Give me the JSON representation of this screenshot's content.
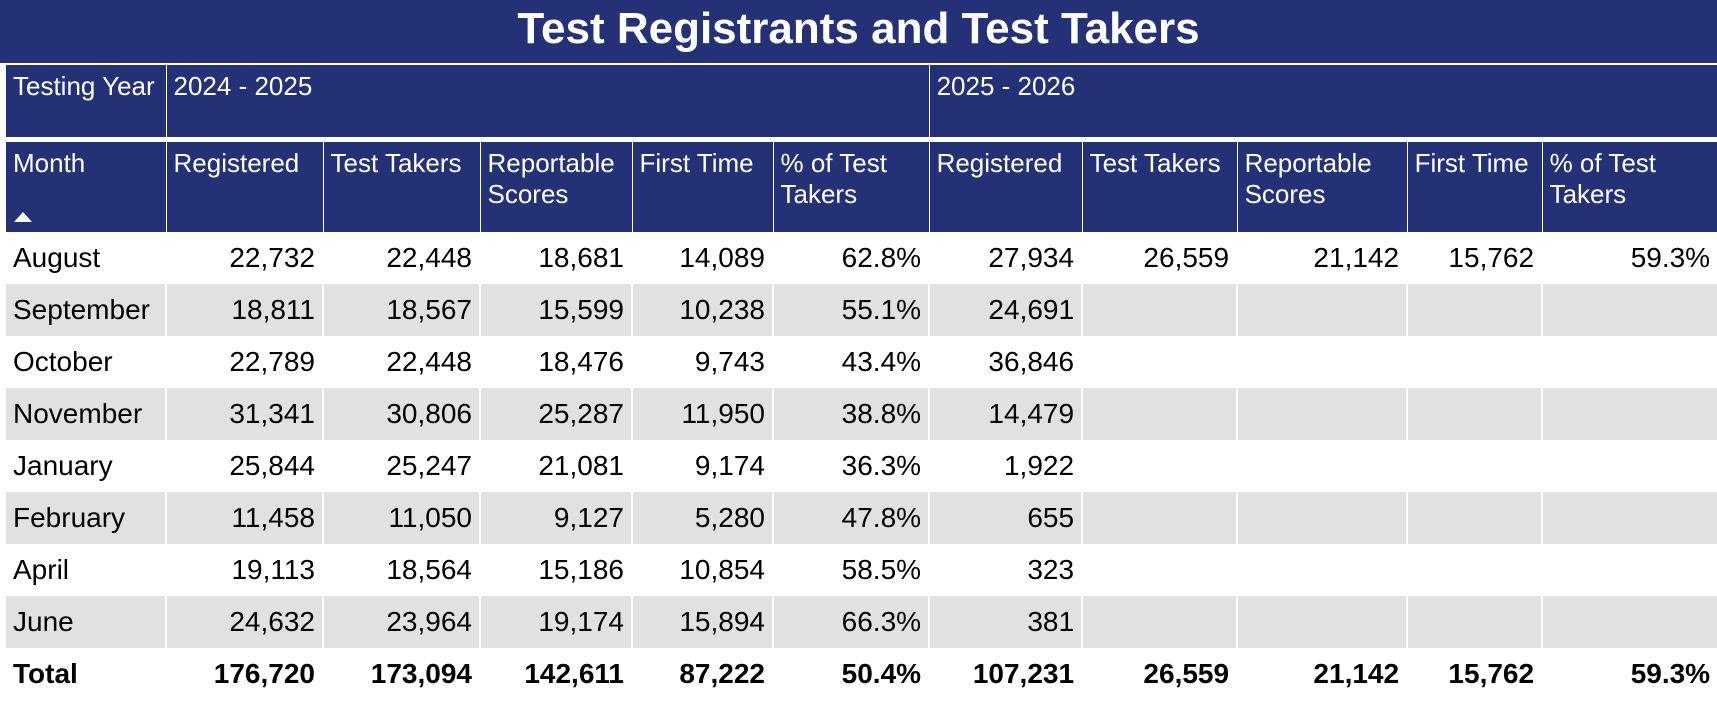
{
  "title": "Test Registrants and Test Takers",
  "header": {
    "testing_year_label": "Testing Year",
    "year1": "2024 - 2025",
    "year2": "2025 - 2026",
    "columns": [
      "Month",
      "Registered",
      "Test Takers",
      "Reportable Scores",
      "First Time",
      "% of Test Takers",
      "Registered",
      "Test Takers",
      "Reportable Scores",
      "First Time",
      "% of Test Takers"
    ]
  },
  "rows": [
    {
      "month": "August",
      "cells": [
        "22,732",
        "22,448",
        "18,681",
        "14,089",
        "62.8%",
        "27,934",
        "26,559",
        "21,142",
        "15,762",
        "59.3%"
      ]
    },
    {
      "month": "September",
      "cells": [
        "18,811",
        "18,567",
        "15,599",
        "10,238",
        "55.1%",
        "24,691",
        "",
        "",
        "",
        ""
      ]
    },
    {
      "month": "October",
      "cells": [
        "22,789",
        "22,448",
        "18,476",
        "9,743",
        "43.4%",
        "36,846",
        "",
        "",
        "",
        ""
      ]
    },
    {
      "month": "November",
      "cells": [
        "31,341",
        "30,806",
        "25,287",
        "11,950",
        "38.8%",
        "14,479",
        "",
        "",
        "",
        ""
      ]
    },
    {
      "month": "January",
      "cells": [
        "25,844",
        "25,247",
        "21,081",
        "9,174",
        "36.3%",
        "1,922",
        "",
        "",
        "",
        ""
      ]
    },
    {
      "month": "February",
      "cells": [
        "11,458",
        "11,050",
        "9,127",
        "5,280",
        "47.8%",
        "655",
        "",
        "",
        "",
        ""
      ]
    },
    {
      "month": "April",
      "cells": [
        "19,113",
        "18,564",
        "15,186",
        "10,854",
        "58.5%",
        "323",
        "",
        "",
        "",
        ""
      ]
    },
    {
      "month": "June",
      "cells": [
        "24,632",
        "23,964",
        "19,174",
        "15,894",
        "66.3%",
        "381",
        "",
        "",
        "",
        ""
      ]
    }
  ],
  "total": {
    "label": "Total",
    "cells": [
      "176,720",
      "173,094",
      "142,611",
      "87,222",
      "50.4%",
      "107,231",
      "26,559",
      "21,142",
      "15,762",
      "59.3%"
    ]
  },
  "colors": {
    "header_bg": "#243176",
    "alt_row": "#e1e1e1"
  },
  "icons": {
    "sort": "sort-ascending-icon"
  }
}
